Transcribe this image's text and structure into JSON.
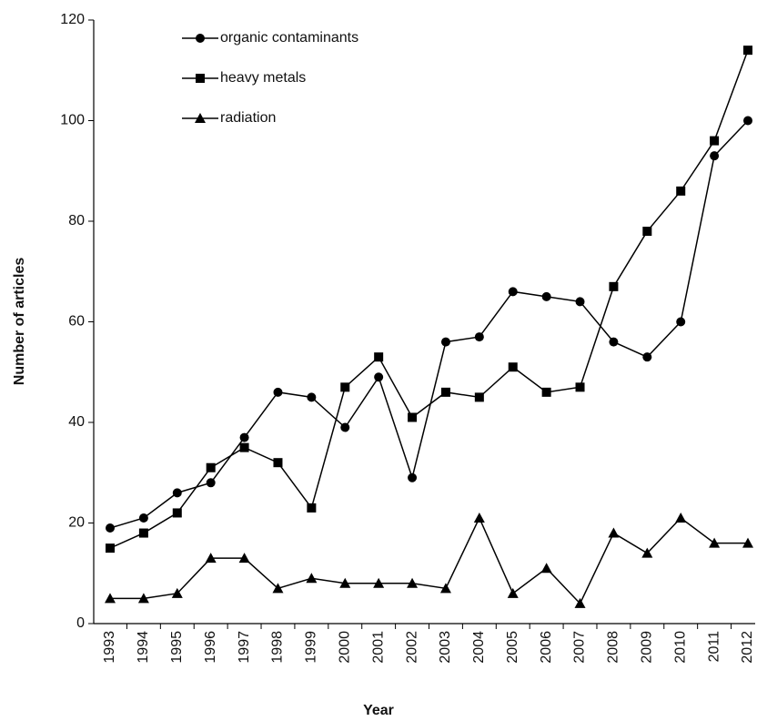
{
  "chart_data": {
    "type": "line",
    "x_label": "Year",
    "y_label": "Number of articles",
    "categories": [
      "1993",
      "1994",
      "1995",
      "1996",
      "1997",
      "1998",
      "1999",
      "2000",
      "2001",
      "2002",
      "2003",
      "2004",
      "2005",
      "2006",
      "2007",
      "2008",
      "2009",
      "2010",
      "2011",
      "2012"
    ],
    "series": [
      {
        "name": "organic contaminants",
        "color": "#000000",
        "marker": "circle",
        "values": [
          19,
          21,
          26,
          28,
          37,
          46,
          45,
          39,
          49,
          29,
          56,
          57,
          66,
          65,
          64,
          56,
          53,
          60,
          93,
          100
        ]
      },
      {
        "name": "heavy metals",
        "color": "#000000",
        "marker": "square",
        "values": [
          15,
          18,
          22,
          31,
          35,
          32,
          23,
          47,
          53,
          41,
          46,
          45,
          51,
          46,
          47,
          67,
          78,
          86,
          96,
          114
        ]
      },
      {
        "name": "radiation",
        "color": "#000000",
        "marker": "triangle",
        "values": [
          5,
          5,
          6,
          13,
          13,
          7,
          9,
          8,
          8,
          8,
          7,
          21,
          6,
          11,
          4,
          18,
          14,
          21,
          16,
          16
        ]
      }
    ],
    "ylim": [
      0,
      120
    ],
    "yticks": [
      0,
      20,
      40,
      60,
      80,
      100,
      120
    ],
    "grid": false,
    "legend": "upper left"
  }
}
